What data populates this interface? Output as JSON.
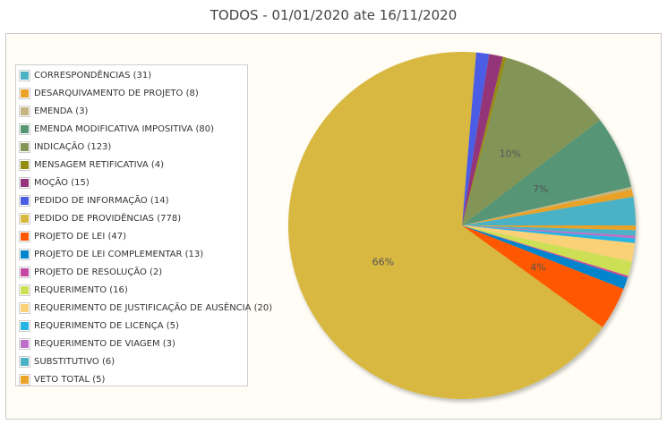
{
  "title": "TODOS - 01/01/2020 ate 16/11/2020",
  "chart_data": {
    "type": "pie",
    "title": "TODOS - 01/01/2020 ate 16/11/2020",
    "legend_position": "left",
    "slices": [
      {
        "label": "CORRESPONDÊNCIAS (31)",
        "value": 31,
        "color": "#4bb2c5"
      },
      {
        "label": "DESARQUIVAMENTO DE PROJETO (8)",
        "value": 8,
        "color": "#eaa228"
      },
      {
        "label": "EMENDA (3)",
        "value": 3,
        "color": "#c5b47f"
      },
      {
        "label": "EMENDA MODIFICATIVA IMPOSITIVA (80)",
        "value": 80,
        "color": "#579575"
      },
      {
        "label": "INDICAÇÃO (123)",
        "value": 123,
        "color": "#839557"
      },
      {
        "label": "MENSAGEM RETIFICATIVA (4)",
        "value": 4,
        "color": "#958c12"
      },
      {
        "label": "MOÇÃO (15)",
        "value": 15,
        "color": "#953579"
      },
      {
        "label": "PEDIDO DE INFORMAÇÃO (14)",
        "value": 14,
        "color": "#4b5de4"
      },
      {
        "label": "PEDIDO DE PROVIDÊNCIAS (778)",
        "value": 778,
        "color": "#d8b83f"
      },
      {
        "label": "PROJETO DE LEI (47)",
        "value": 47,
        "color": "#ff5800"
      },
      {
        "label": "PROJETO DE LEI COMPLEMENTAR (13)",
        "value": 13,
        "color": "#0085cc"
      },
      {
        "label": "PROJETO DE RESOLUÇÃO (2)",
        "value": 2,
        "color": "#c747a3"
      },
      {
        "label": "REQUERIMENTO (16)",
        "value": 16,
        "color": "#cddf54"
      },
      {
        "label": "REQUERIMENTO DE JUSTIFICAÇÃO DE AUSÊNCIA (20)",
        "value": 20,
        "color": "#fbd178"
      },
      {
        "label": "REQUERIMENTO DE LICENÇA (5)",
        "value": 5,
        "color": "#26b4e3"
      },
      {
        "label": "REQUERIMENTO DE VIAGEM (3)",
        "value": 3,
        "color": "#bd70c7"
      },
      {
        "label": "SUBSTITUTIVO (6)",
        "value": 6,
        "color": "#4bb2c5"
      },
      {
        "label": "VETO TOTAL (5)",
        "value": 5,
        "color": "#eaa228"
      }
    ],
    "data_labels": [
      {
        "slice": 8,
        "text": "66%"
      },
      {
        "slice": 9,
        "text": "4%"
      },
      {
        "slice": 3,
        "text": "7%"
      },
      {
        "slice": 4,
        "text": "10%"
      }
    ]
  }
}
